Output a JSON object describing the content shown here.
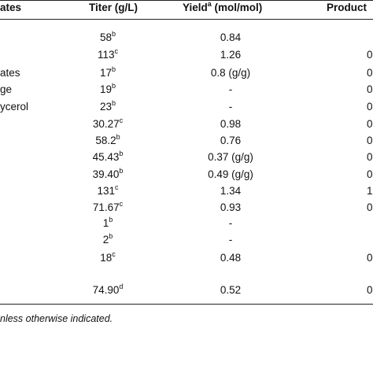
{
  "header": {
    "substrate": "ates",
    "titer": "Titer (g/L)",
    "yield": "Yield",
    "yield_sup": "a",
    "yield_unit": " (mol/mol)",
    "productivity": "Product"
  },
  "rows": [
    {
      "substrate": "",
      "titer": "58",
      "sup": "b",
      "yield": "0.84",
      "productivity": ""
    },
    {
      "substrate": "",
      "titer": "113",
      "sup": "c",
      "yield": "1.26",
      "productivity": "0"
    },
    {
      "substrate": "ates",
      "titer": "17",
      "sup": "b",
      "yield": "0.8 (g/g)",
      "productivity": "0"
    },
    {
      "substrate": "ge",
      "titer": "19",
      "sup": "b",
      "yield": "-",
      "productivity": "0"
    },
    {
      "substrate": "ycerol",
      "titer": "23",
      "sup": "b",
      "yield": "-",
      "productivity": "0"
    },
    {
      "substrate": "",
      "titer": "30.27",
      "sup": "c",
      "yield": "0.98",
      "productivity": "0"
    },
    {
      "substrate": "",
      "titer": "58.2",
      "sup": "b",
      "yield": "0.76",
      "productivity": "0"
    },
    {
      "substrate": "",
      "titer": "45.43",
      "sup": "b",
      "yield": "0.37 (g/g)",
      "productivity": "0"
    },
    {
      "substrate": "",
      "titer": "39.40",
      "sup": "b",
      "yield": "0.49 (g/g)",
      "productivity": "0"
    },
    {
      "substrate": "",
      "titer": "131",
      "sup": "c",
      "yield": "1.34",
      "productivity": "1"
    },
    {
      "substrate": "",
      "titer": "71.67",
      "sup": "c",
      "yield": "0.93",
      "productivity": "0"
    },
    {
      "substrate": "",
      "titer": "1",
      "sup": "b",
      "yield": "-",
      "productivity": ""
    },
    {
      "substrate": "",
      "titer": "2",
      "sup": "b",
      "yield": "-",
      "productivity": ""
    },
    {
      "substrate": "",
      "titer": "18",
      "sup": "c",
      "yield": "0.48",
      "productivity": "0"
    },
    {
      "substrate": "",
      "titer": "74.90",
      "sup": "d",
      "yield": "0.52",
      "productivity": "0"
    }
  ],
  "footnote": "nless otherwise indicated."
}
